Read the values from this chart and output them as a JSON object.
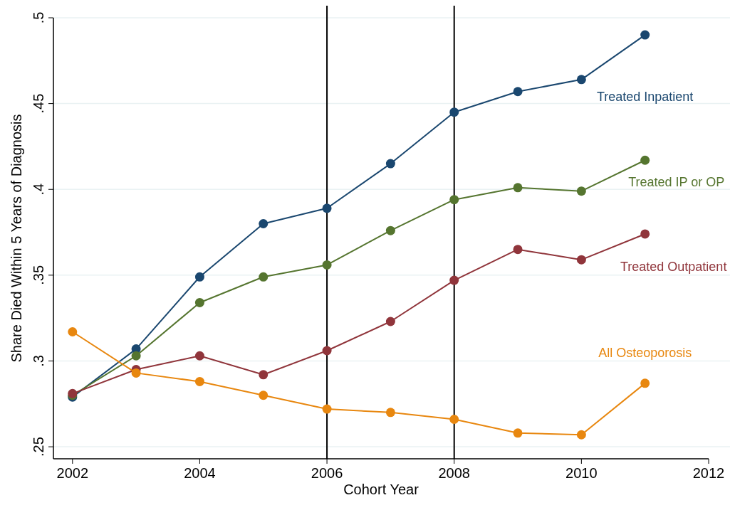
{
  "chart_data": {
    "type": "line",
    "xlabel": "Cohort Year",
    "ylabel": "Share Died Within 5 Years of Diagnosis",
    "x": [
      2002,
      2003,
      2004,
      2005,
      2006,
      2007,
      2008,
      2009,
      2010,
      2011
    ],
    "series": [
      {
        "name": "Treated Inpatient",
        "color": "#1a476f",
        "values": [
          0.279,
          0.307,
          0.349,
          0.38,
          0.389,
          0.415,
          0.445,
          0.457,
          0.464,
          0.49
        ]
      },
      {
        "name": "Treated IP or OP",
        "color": "#55752f",
        "values": [
          0.28,
          0.303,
          0.334,
          0.349,
          0.356,
          0.376,
          0.394,
          0.401,
          0.399,
          0.417
        ]
      },
      {
        "name": "Treated Outpatient",
        "color": "#90353b",
        "values": [
          0.281,
          0.295,
          0.303,
          0.292,
          0.306,
          0.323,
          0.347,
          0.365,
          0.359,
          0.374
        ]
      },
      {
        "name": "All Osteoporosis",
        "color": "#e8870f",
        "values": [
          0.317,
          0.293,
          0.288,
          0.28,
          0.272,
          0.27,
          0.266,
          0.258,
          0.257,
          0.287
        ]
      }
    ],
    "xlim": [
      2001.7,
      2012
    ],
    "xticks": [
      2002,
      2004,
      2006,
      2008,
      2010,
      2012
    ],
    "ylim": [
      0.243,
      0.5
    ],
    "yticks": [
      {
        "value": 0.25,
        "label": ".25"
      },
      {
        "value": 0.3,
        "label": ".3"
      },
      {
        "value": 0.35,
        "label": ".35"
      },
      {
        "value": 0.4,
        "label": ".4"
      },
      {
        "value": 0.45,
        "label": ".45"
      },
      {
        "value": 0.5,
        "label": ".5"
      }
    ],
    "ref_lines": [
      {
        "axis": "x",
        "value": 2006,
        "color": "#000000"
      },
      {
        "axis": "x",
        "value": 2008,
        "color": "#000000"
      }
    ],
    "grid": "y",
    "marker": "circle",
    "line_style": "solid"
  }
}
